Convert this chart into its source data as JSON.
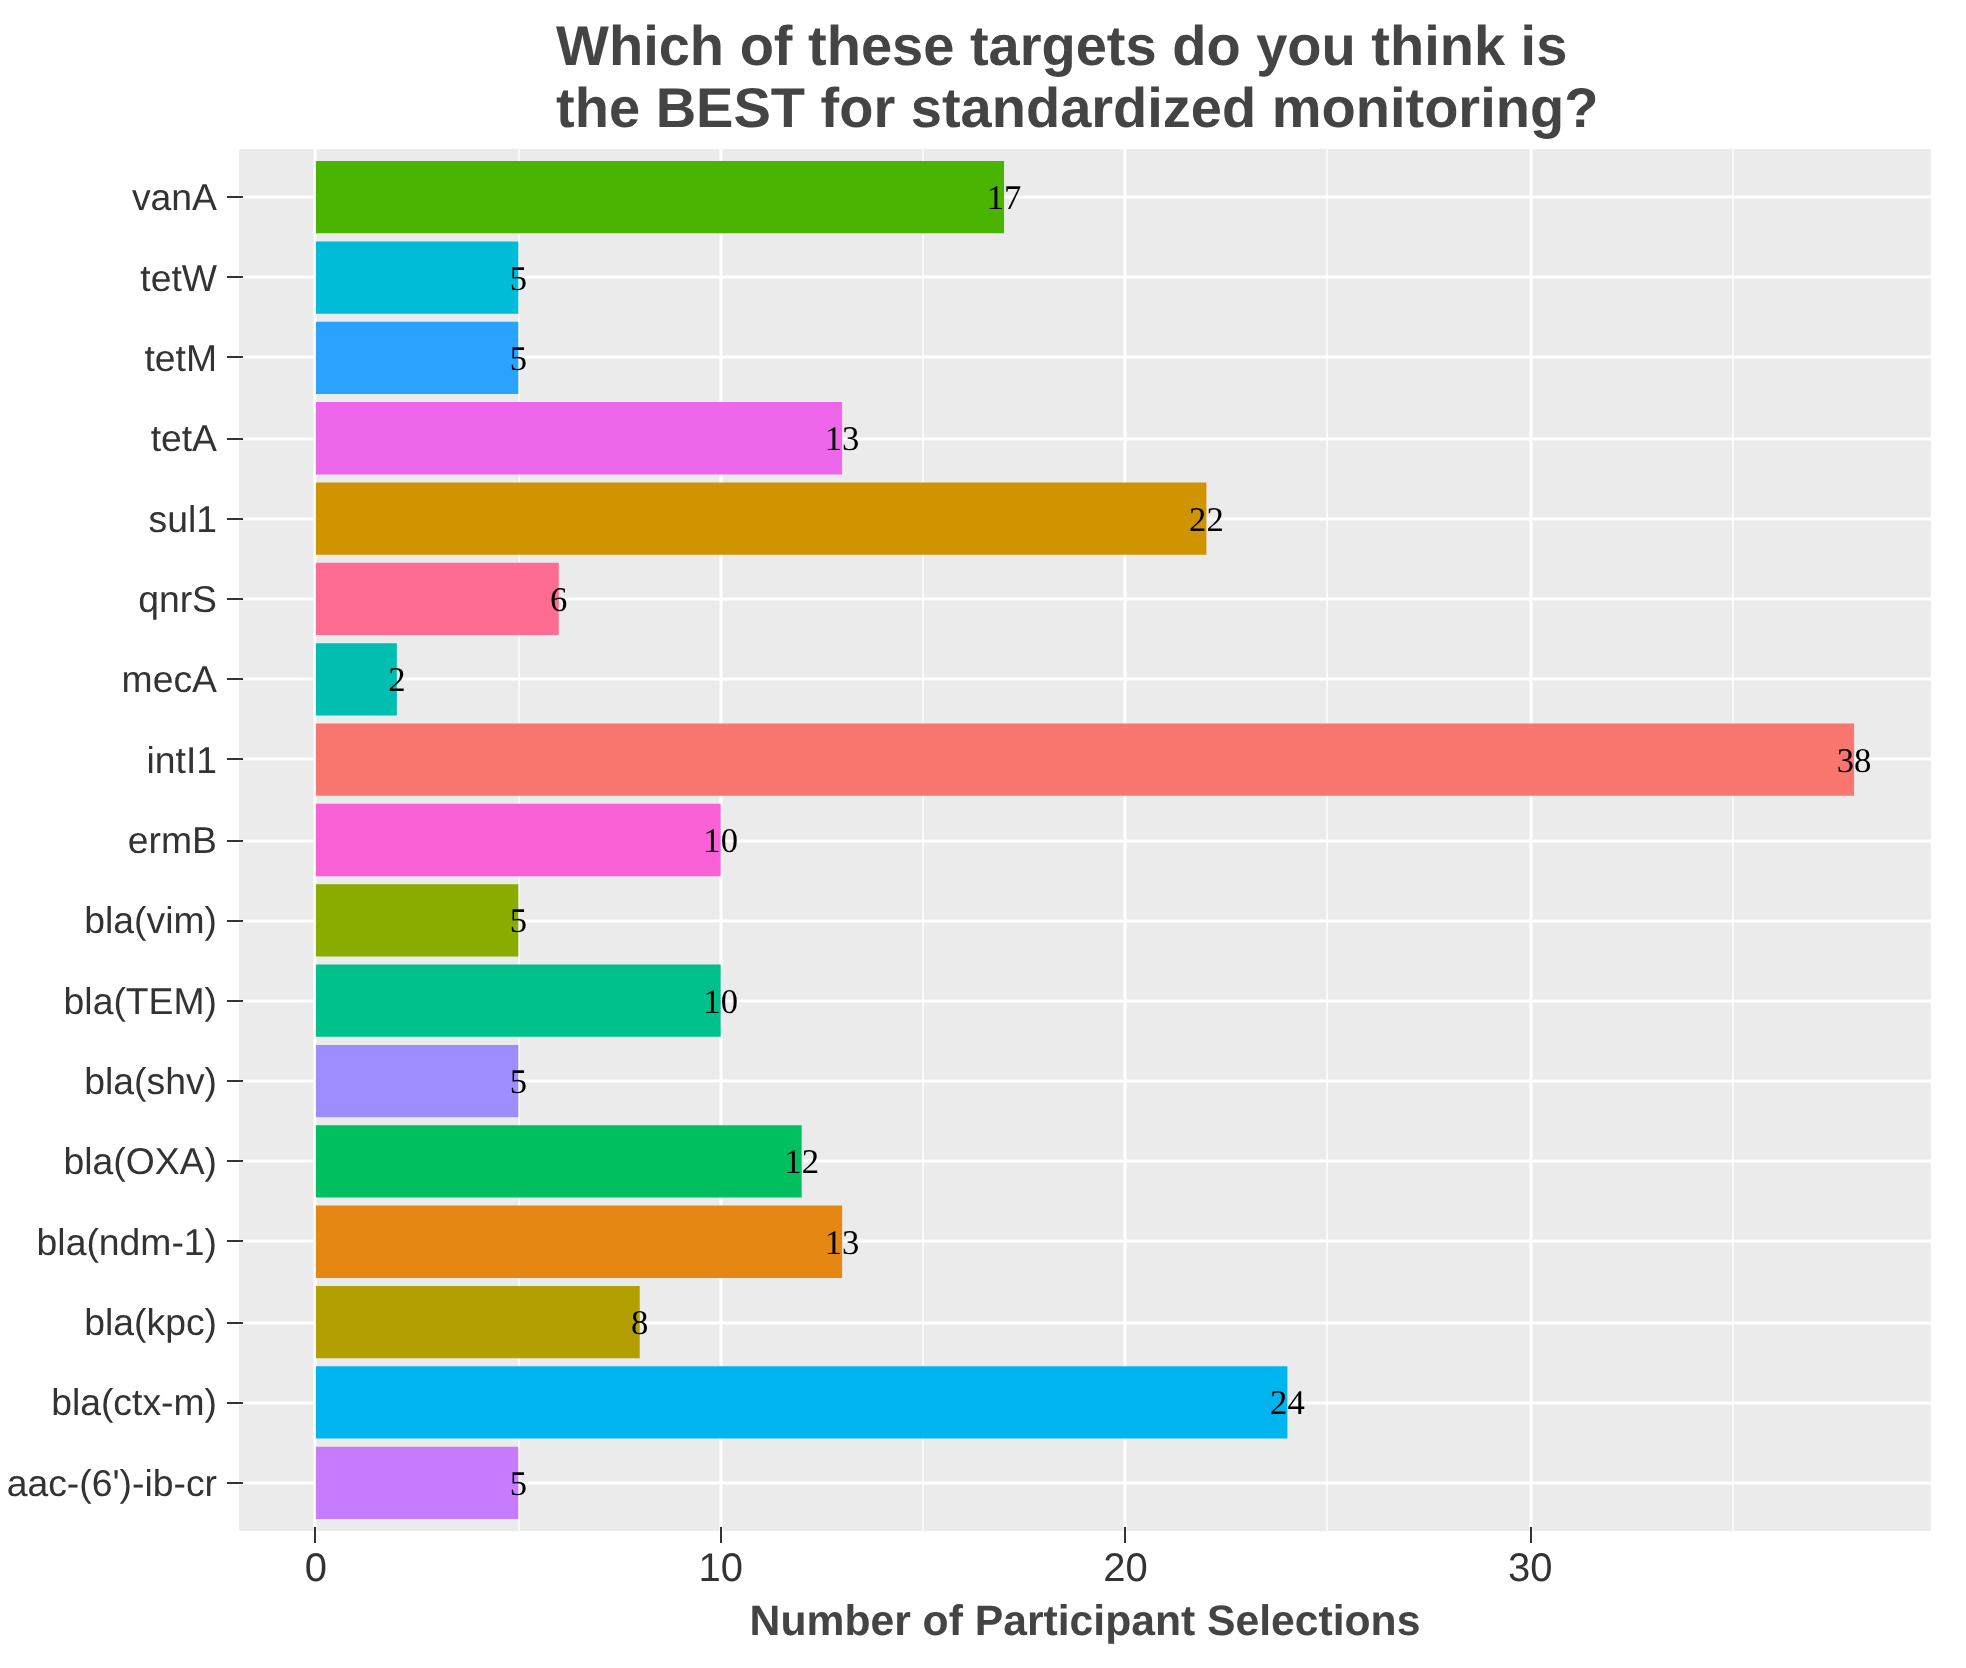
{
  "chart_data": {
    "type": "bar",
    "orientation": "horizontal",
    "title": "Which of these targets do you think is\n the BEST for standardized monitoring?",
    "xlabel": "Number of Participant Selections",
    "categories": [
      "vanA",
      "tetW",
      "tetM",
      "tetA",
      "sul1",
      "qnrS",
      "mecA",
      "intI1",
      "ermB",
      "bla(vim)",
      "bla(TEM)",
      "bla(shv)",
      "bla(OXA)",
      "bla(ndm-1)",
      "bla(kpc)",
      "bla(ctx-m)",
      "aac-(6')-ib-cr"
    ],
    "values": [
      17,
      5,
      5,
      13,
      22,
      6,
      2,
      38,
      10,
      5,
      10,
      5,
      12,
      13,
      8,
      24,
      5
    ],
    "colors": [
      "#49b500",
      "#00bcd8",
      "#2aa2ff",
      "#ee67eb",
      "#d09400",
      "#ff6c91",
      "#00bfb0",
      "#f8766d",
      "#fb61d7",
      "#8aab00",
      "#00c08b",
      "#9d8dff",
      "#00bf5f",
      "#e68613",
      "#b3a000",
      "#00b4ef",
      "#c77cff"
    ],
    "xlim": [
      -1.9,
      39.9
    ],
    "xticks": [
      0,
      10,
      20,
      30
    ],
    "grid": true,
    "data_labels": true
  }
}
